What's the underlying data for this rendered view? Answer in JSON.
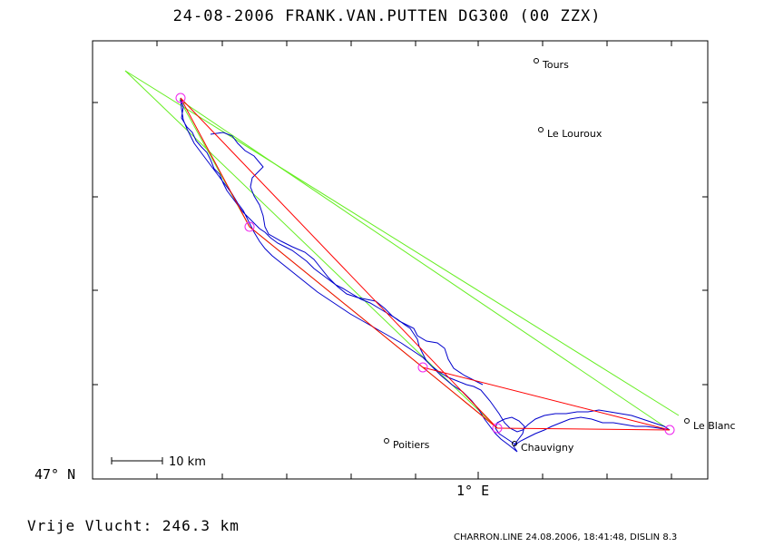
{
  "title": "24-08-2006    FRANK.VAN.PUTTEN    DG300 (00 ZZX)",
  "axes": {
    "lat_label": "47° N",
    "lon_label": "1° E"
  },
  "scale_bar_label": "10 km",
  "distance_text": "Vrije Vlucht:  246.3 km",
  "footer": "CHARRON.LINE 24.08.2006, 18:41:48, DISLIN 8.3",
  "towns": [
    {
      "name": "Tours"
    },
    {
      "name": "Le Louroux"
    },
    {
      "name": "Poitiers"
    },
    {
      "name": "Chauvigny"
    },
    {
      "name": "Le Blanc"
    }
  ],
  "colors": {
    "track": "#0000cc",
    "route": "#ff0000",
    "triangle": "#66ee22",
    "turnpoint": "#ee22ee",
    "frame": "#000000"
  }
}
